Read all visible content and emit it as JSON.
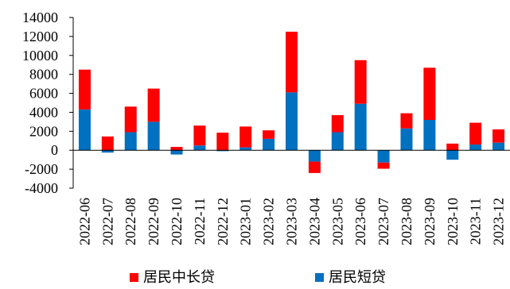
{
  "chart_data": {
    "type": "bar",
    "stacked": true,
    "categories": [
      "2022-06",
      "2022-07",
      "2022-08",
      "2022-09",
      "2022-10",
      "2022-11",
      "2022-12",
      "2023-01",
      "2023-02",
      "2023-03",
      "2023-04",
      "2023-05",
      "2023-06",
      "2023-07",
      "2023-08",
      "2023-09",
      "2023-10",
      "2023-11",
      "2023-12"
    ],
    "series": [
      {
        "name": "居民短贷",
        "color": "#0070C0",
        "values": [
          4300,
          -250,
          1900,
          3000,
          -450,
          500,
          -100,
          300,
          1200,
          6100,
          -1200,
          1900,
          4900,
          -1300,
          2300,
          3200,
          -1000,
          600,
          800
        ]
      },
      {
        "name": "居民中长贷",
        "color": "#FF0000",
        "values": [
          4200,
          1450,
          2700,
          3500,
          350,
          2100,
          1850,
          2200,
          900,
          6400,
          -1200,
          1800,
          4600,
          -650,
          1600,
          5500,
          700,
          2300,
          1400
        ]
      }
    ],
    "yticks": [
      "14000",
      "12000",
      "10000",
      "8000",
      "6000",
      "4000",
      "2000",
      "0",
      "-2000",
      "-4000"
    ],
    "ylim": [
      -4000,
      14000
    ],
    "grid": false,
    "legend": "bottom"
  }
}
